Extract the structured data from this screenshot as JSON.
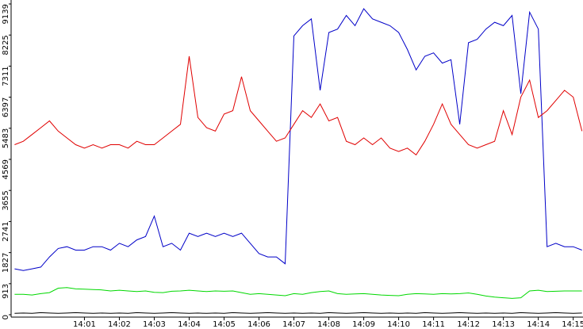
{
  "chart_data": {
    "type": "line",
    "x": [
      -1,
      -0.75,
      -0.5,
      -0.25,
      0,
      0.25,
      0.5,
      0.75,
      1,
      1.25,
      1.5,
      1.75,
      2,
      2.25,
      2.5,
      2.75,
      3,
      3.25,
      3.5,
      3.75,
      4,
      4.25,
      4.5,
      4.75,
      5,
      5.25,
      5.5,
      5.75,
      6,
      6.25,
      6.5,
      6.75,
      7,
      7.25,
      7.5,
      7.75,
      8,
      8.25,
      8.5,
      8.75,
      9,
      9.25,
      9.5,
      9.75,
      10,
      10.25,
      10.5,
      10.75,
      11,
      11.25,
      11.5,
      11.75,
      12,
      12.25,
      12.5,
      12.75,
      13,
      13.25,
      13.5,
      13.75,
      14,
      14.25,
      14.5,
      14.75,
      15,
      15.25
    ],
    "xlim": [
      -1.1,
      15.28
    ],
    "xticks": [
      {
        "value": 1,
        "label": "14:01"
      },
      {
        "value": 2,
        "label": "14:02"
      },
      {
        "value": 3,
        "label": "14:03"
      },
      {
        "value": 4,
        "label": "14:04"
      },
      {
        "value": 5,
        "label": "14:05"
      },
      {
        "value": 6,
        "label": "14:06"
      },
      {
        "value": 7,
        "label": "14:07"
      },
      {
        "value": 8,
        "label": "14:08"
      },
      {
        "value": 9,
        "label": "14:09"
      },
      {
        "value": 10,
        "label": "14:10"
      },
      {
        "value": 11,
        "label": "14:11"
      },
      {
        "value": 12,
        "label": "14:12"
      },
      {
        "value": 13,
        "label": "14:13"
      },
      {
        "value": 14,
        "label": "14:14"
      },
      {
        "value": 15,
        "label": "14:15"
      }
    ],
    "ylim": [
      0,
      9139
    ],
    "yticks": [
      0,
      913,
      1827,
      2741,
      3655,
      4569,
      5483,
      6397,
      7311,
      8225,
      9139
    ],
    "grid": false,
    "series": [
      {
        "color": "#0000c8",
        "values": [
          1350,
          1300,
          1350,
          1400,
          1700,
          1950,
          2000,
          1900,
          1900,
          2000,
          2000,
          1900,
          2100,
          2000,
          2200,
          2300,
          2900,
          2000,
          2100,
          1900,
          2400,
          2300,
          2400,
          2300,
          2400,
          2300,
          2400,
          2100,
          1800,
          1700,
          1700,
          1500,
          8200,
          8500,
          8700,
          6600,
          8300,
          8400,
          8800,
          8500,
          9000,
          8700,
          8600,
          8500,
          8300,
          7800,
          7200,
          7600,
          7700,
          7400,
          7500,
          5600,
          8000,
          8100,
          8400,
          8600,
          8500,
          8800,
          6500,
          8900,
          8400,
          2000,
          2100,
          2000,
          2000,
          1900
        ]
      },
      {
        "color": "#e00000",
        "values": [
          5000,
          5100,
          5300,
          5500,
          5700,
          5400,
          5200,
          5000,
          4900,
          5000,
          4900,
          5000,
          5000,
          4900,
          5100,
          5000,
          5000,
          5200,
          5400,
          5600,
          7600,
          5800,
          5500,
          5400,
          5900,
          6000,
          7000,
          6000,
          5700,
          5400,
          5100,
          5200,
          5600,
          6000,
          5800,
          6200,
          5700,
          5800,
          5100,
          5000,
          5200,
          5000,
          5200,
          4900,
          4800,
          4900,
          4700,
          5100,
          5600,
          6200,
          5600,
          5300,
          5000,
          4900,
          5000,
          5100,
          6000,
          5300,
          6400,
          6900,
          5800,
          6000,
          6300,
          6600,
          6400,
          5400
        ]
      },
      {
        "color": "#00d800",
        "values": [
          600,
          600,
          580,
          620,
          650,
          780,
          800,
          760,
          750,
          740,
          730,
          700,
          720,
          700,
          680,
          700,
          660,
          650,
          690,
          700,
          720,
          700,
          680,
          700,
          690,
          700,
          650,
          600,
          620,
          600,
          580,
          560,
          620,
          600,
          650,
          680,
          700,
          620,
          600,
          610,
          620,
          600,
          580,
          570,
          560,
          600,
          620,
          610,
          600,
          620,
          610,
          620,
          640,
          600,
          550,
          520,
          500,
          480,
          500,
          700,
          720,
          680,
          690,
          700,
          700,
          700
        ]
      },
      {
        "color": "#000000",
        "values": [
          40,
          50,
          40,
          60,
          50,
          40,
          50,
          60,
          50,
          40,
          50,
          40,
          50,
          40,
          60,
          50,
          40,
          50,
          60,
          50,
          40,
          50,
          40,
          50,
          40,
          60,
          50,
          40,
          50,
          60,
          50,
          40,
          50,
          40,
          50,
          40,
          60,
          50,
          40,
          50,
          60,
          50,
          40,
          50,
          40,
          50,
          40,
          60,
          50,
          40,
          50,
          60,
          50,
          40,
          50,
          40,
          50,
          40,
          60,
          50,
          40,
          50,
          60,
          50,
          40,
          50
        ]
      }
    ]
  }
}
